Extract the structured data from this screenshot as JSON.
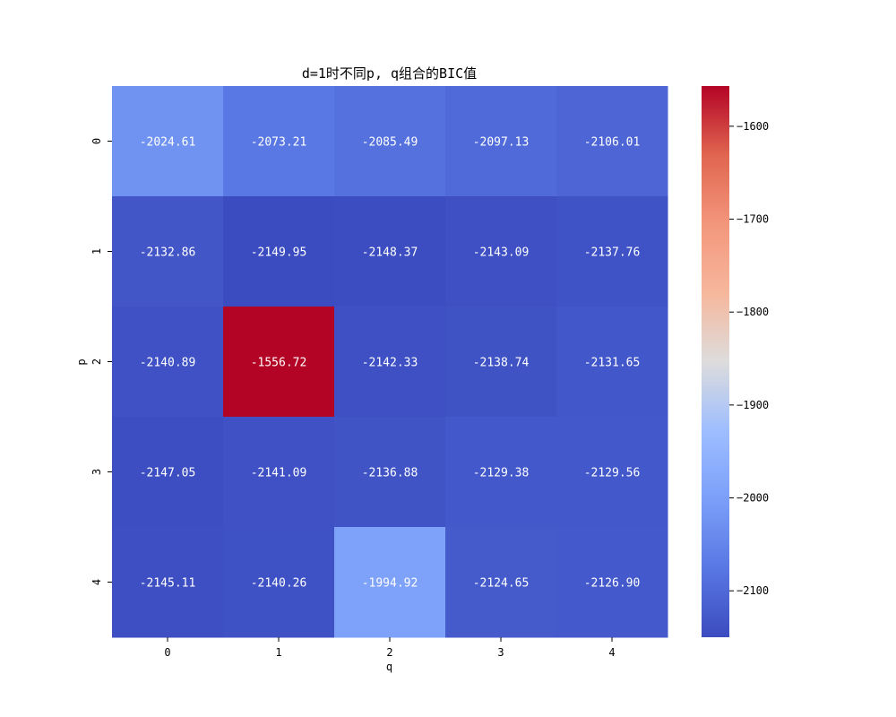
{
  "chart_data": {
    "type": "heatmap",
    "title": "d=1时不同p, q组合的BIC值",
    "xlabel": "q",
    "ylabel": "p",
    "x_categories": [
      "0",
      "1",
      "2",
      "3",
      "4"
    ],
    "y_categories": [
      "0",
      "1",
      "2",
      "3",
      "4"
    ],
    "values": [
      [
        -2024.61,
        -2073.21,
        -2085.49,
        -2097.13,
        -2106.01
      ],
      [
        -2132.86,
        -2149.95,
        -2148.37,
        -2143.09,
        -2137.76
      ],
      [
        -2140.89,
        -1556.72,
        -2142.33,
        -2138.74,
        -2131.65
      ],
      [
        -2147.05,
        -2141.09,
        -2136.88,
        -2129.38,
        -2129.56
      ],
      [
        -2145.11,
        -2140.26,
        -1994.92,
        -2124.65,
        -2126.9
      ]
    ],
    "value_labels": [
      [
        "-2024.61",
        "-2073.21",
        "-2085.49",
        "-2097.13",
        "-2106.01"
      ],
      [
        "-2132.86",
        "-2149.95",
        "-2148.37",
        "-2143.09",
        "-2137.76"
      ],
      [
        "-2140.89",
        "-1556.72",
        "-2142.33",
        "-2138.74",
        "-2131.65"
      ],
      [
        "-2147.05",
        "-2141.09",
        "-2136.88",
        "-2129.38",
        "-2129.56"
      ],
      [
        "-2145.11",
        "-2140.26",
        "-1994.92",
        "-2124.65",
        "-2126.90"
      ]
    ],
    "colormap": "coolwarm",
    "colorbar": {
      "range": [
        -2149.95,
        -1556.72
      ],
      "ticks": [
        -1600,
        -1700,
        -1800,
        -1900,
        -2000,
        -2100
      ],
      "tick_labels": [
        "−1600",
        "−1700",
        "−1800",
        "−1900",
        "−2000",
        "−2100"
      ]
    }
  }
}
